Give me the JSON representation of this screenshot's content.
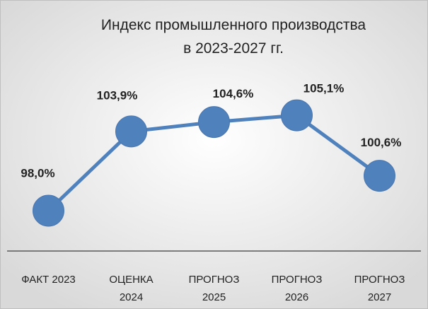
{
  "chart_data": {
    "type": "line",
    "title": "Индекс промышленного производства\nв 2023-2027 гг.",
    "categories": [
      "ФАКТ 2023",
      "ОЦЕНКА\n2024",
      "ПРОГНОЗ\n2025",
      "ПРОГНОЗ\n2026",
      "ПРОГНОЗ\n2027"
    ],
    "values": [
      98.0,
      103.9,
      104.6,
      105.1,
      100.6
    ],
    "value_labels": [
      "98,0%",
      "103,9%",
      "104,6%",
      "105,1%",
      "100,6%"
    ],
    "color": "#4f81bd",
    "ylim": [
      95,
      110
    ]
  }
}
